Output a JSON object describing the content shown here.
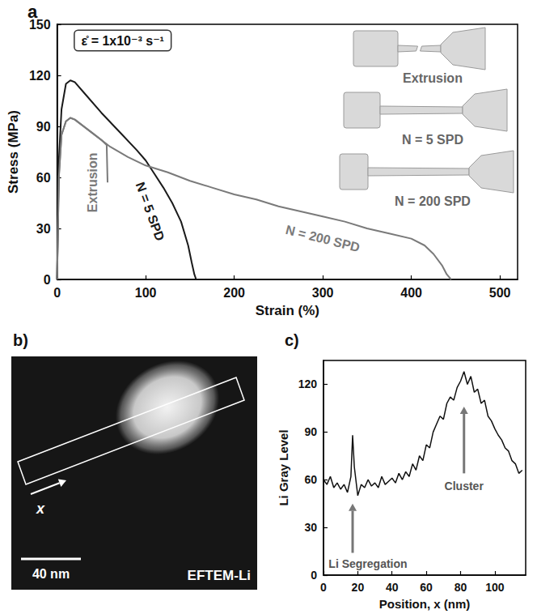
{
  "chart_data": [
    {
      "type": "line",
      "panel_label": "a",
      "xlabel": "Strain (%)",
      "ylabel": "Stress (MPa)",
      "xlim": [
        0,
        520
      ],
      "xticks": [
        0,
        100,
        200,
        300,
        400,
        500
      ],
      "ylim": [
        0,
        150
      ],
      "yticks": [
        0,
        30,
        60,
        90,
        120,
        150
      ],
      "grid": false,
      "annotations": [
        {
          "text": "ε̊ = 1x10⁻³ s⁻¹"
        }
      ],
      "inset_labels": [
        "Extrusion",
        "N = 5 SPD",
        "N = 200 SPD"
      ],
      "series": [
        {
          "name": "Extrusion",
          "color": "#7a7a7a",
          "x": [
            0,
            2,
            5,
            10,
            15,
            20,
            30,
            40,
            50,
            56,
            57
          ],
          "values": [
            0,
            60,
            85,
            93,
            95,
            94,
            90,
            86,
            82,
            79,
            57
          ]
        },
        {
          "name": "N = 5 SPD",
          "color": "#1a1a1a",
          "x": [
            0,
            2,
            5,
            10,
            15,
            20,
            30,
            50,
            70,
            90,
            100,
            110,
            120,
            130,
            140,
            148,
            152,
            155,
            157
          ],
          "values": [
            0,
            70,
            100,
            115,
            117,
            116,
            110,
            98,
            87,
            76,
            70,
            62,
            54,
            45,
            34,
            20,
            10,
            3,
            0
          ]
        },
        {
          "name": "N = 200 SPD",
          "color": "#7a7a7a",
          "x": [
            0,
            2,
            5,
            10,
            15,
            20,
            40,
            60,
            80,
            100,
            125,
            150,
            175,
            200,
            225,
            250,
            275,
            300,
            325,
            350,
            375,
            400,
            415,
            425,
            435,
            440,
            445
          ],
          "values": [
            0,
            60,
            85,
            93,
            95,
            94,
            86,
            78,
            72,
            67,
            63,
            58,
            54,
            50,
            47,
            43,
            40,
            37,
            34,
            30,
            27,
            24,
            20,
            15,
            8,
            3,
            0
          ]
        }
      ]
    },
    {
      "type": "line",
      "panel_label": "c)",
      "xlabel": "Position, x (nm)",
      "ylabel": "Li Gray Level",
      "xlim": [
        0,
        118
      ],
      "xticks": [
        0,
        20,
        40,
        60,
        80,
        100
      ],
      "ylim": [
        0,
        135
      ],
      "yticks": [
        0,
        30,
        60,
        90,
        120
      ],
      "grid": false,
      "annotations": [
        {
          "text": "Li Segregation",
          "x": 17
        },
        {
          "text": "Cluster",
          "x": 82
        }
      ],
      "series": [
        {
          "color": "#111111",
          "x": [
            0,
            2,
            4,
            6,
            8,
            10,
            12,
            14,
            16,
            17,
            18,
            20,
            22,
            24,
            26,
            28,
            30,
            32,
            34,
            36,
            38,
            40,
            42,
            44,
            46,
            48,
            50,
            52,
            54,
            56,
            58,
            60,
            62,
            64,
            66,
            68,
            70,
            72,
            74,
            76,
            78,
            80,
            82,
            84,
            86,
            88,
            90,
            92,
            94,
            96,
            98,
            100,
            102,
            104,
            106,
            108,
            110,
            112,
            114,
            116
          ],
          "values": [
            60,
            57,
            62,
            55,
            58,
            54,
            57,
            52,
            62,
            88,
            68,
            50,
            57,
            55,
            60,
            56,
            58,
            55,
            62,
            57,
            59,
            61,
            58,
            64,
            60,
            65,
            62,
            70,
            66,
            75,
            72,
            82,
            80,
            90,
            95,
            100,
            98,
            108,
            112,
            110,
            118,
            122,
            128,
            120,
            125,
            115,
            117,
            108,
            110,
            100,
            97,
            92,
            88,
            85,
            80,
            78,
            72,
            70,
            64,
            66
          ]
        }
      ]
    }
  ],
  "image_panel": {
    "panel_label": "b)",
    "scale_bar": "40 nm",
    "label": "EFTEM-Li",
    "arrow_label": "x"
  }
}
